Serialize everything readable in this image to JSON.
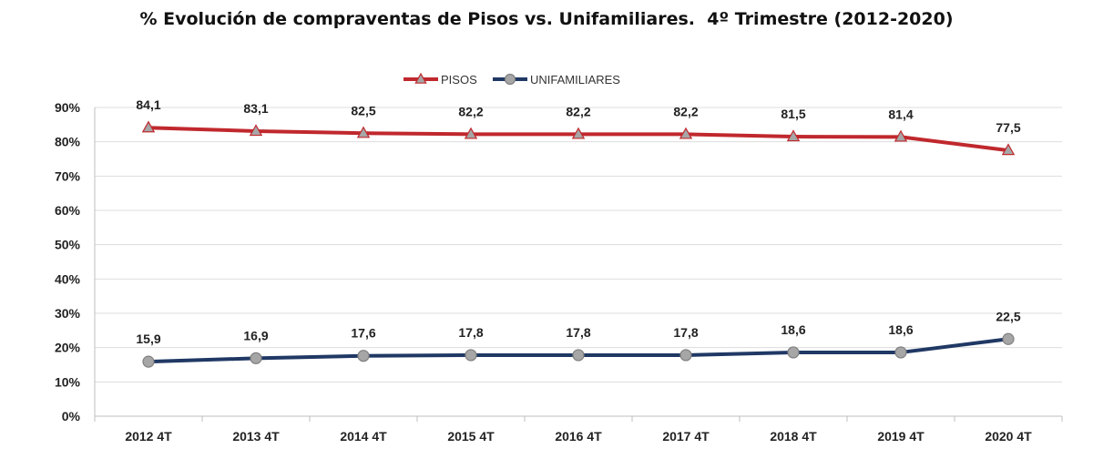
{
  "colors": {
    "pisos": "#C0282D",
    "unifamiliares": "#203864",
    "marker_fill": "#A6A6A6",
    "grid": "#DDDDDD"
  },
  "chart_data": {
    "type": "line",
    "title": "% Evolución de compraventas de Pisos vs. Unifamiliares.  4º Trimestre (2012-2020)",
    "xlabel": "",
    "ylabel": "",
    "categories": [
      "2012 4T",
      "2013 4T",
      "2014 4T",
      "2015 4T",
      "2016 4T",
      "2017 4T",
      "2018 4T",
      "2019 4T",
      "2020 4T"
    ],
    "ylim": [
      0,
      90
    ],
    "yticks": [
      "0%",
      "10%",
      "20%",
      "30%",
      "40%",
      "50%",
      "60%",
      "70%",
      "80%",
      "90%"
    ],
    "grid": true,
    "legend": "top-center",
    "series": [
      {
        "name": "PISOS",
        "marker": "triangle",
        "values": [
          84.1,
          83.1,
          82.5,
          82.2,
          82.2,
          82.2,
          81.5,
          81.4,
          77.5
        ],
        "labels": [
          "84,1",
          "83,1",
          "82,5",
          "82,2",
          "82,2",
          "82,2",
          "81,5",
          "81,4",
          "77,5"
        ]
      },
      {
        "name": "UNIFAMILIARES",
        "marker": "circle",
        "values": [
          15.9,
          16.9,
          17.6,
          17.8,
          17.8,
          17.8,
          18.6,
          18.6,
          22.5
        ],
        "labels": [
          "15,9",
          "16,9",
          "17,6",
          "17,8",
          "17,8",
          "17,8",
          "18,6",
          "18,6",
          "22,5"
        ]
      }
    ]
  }
}
